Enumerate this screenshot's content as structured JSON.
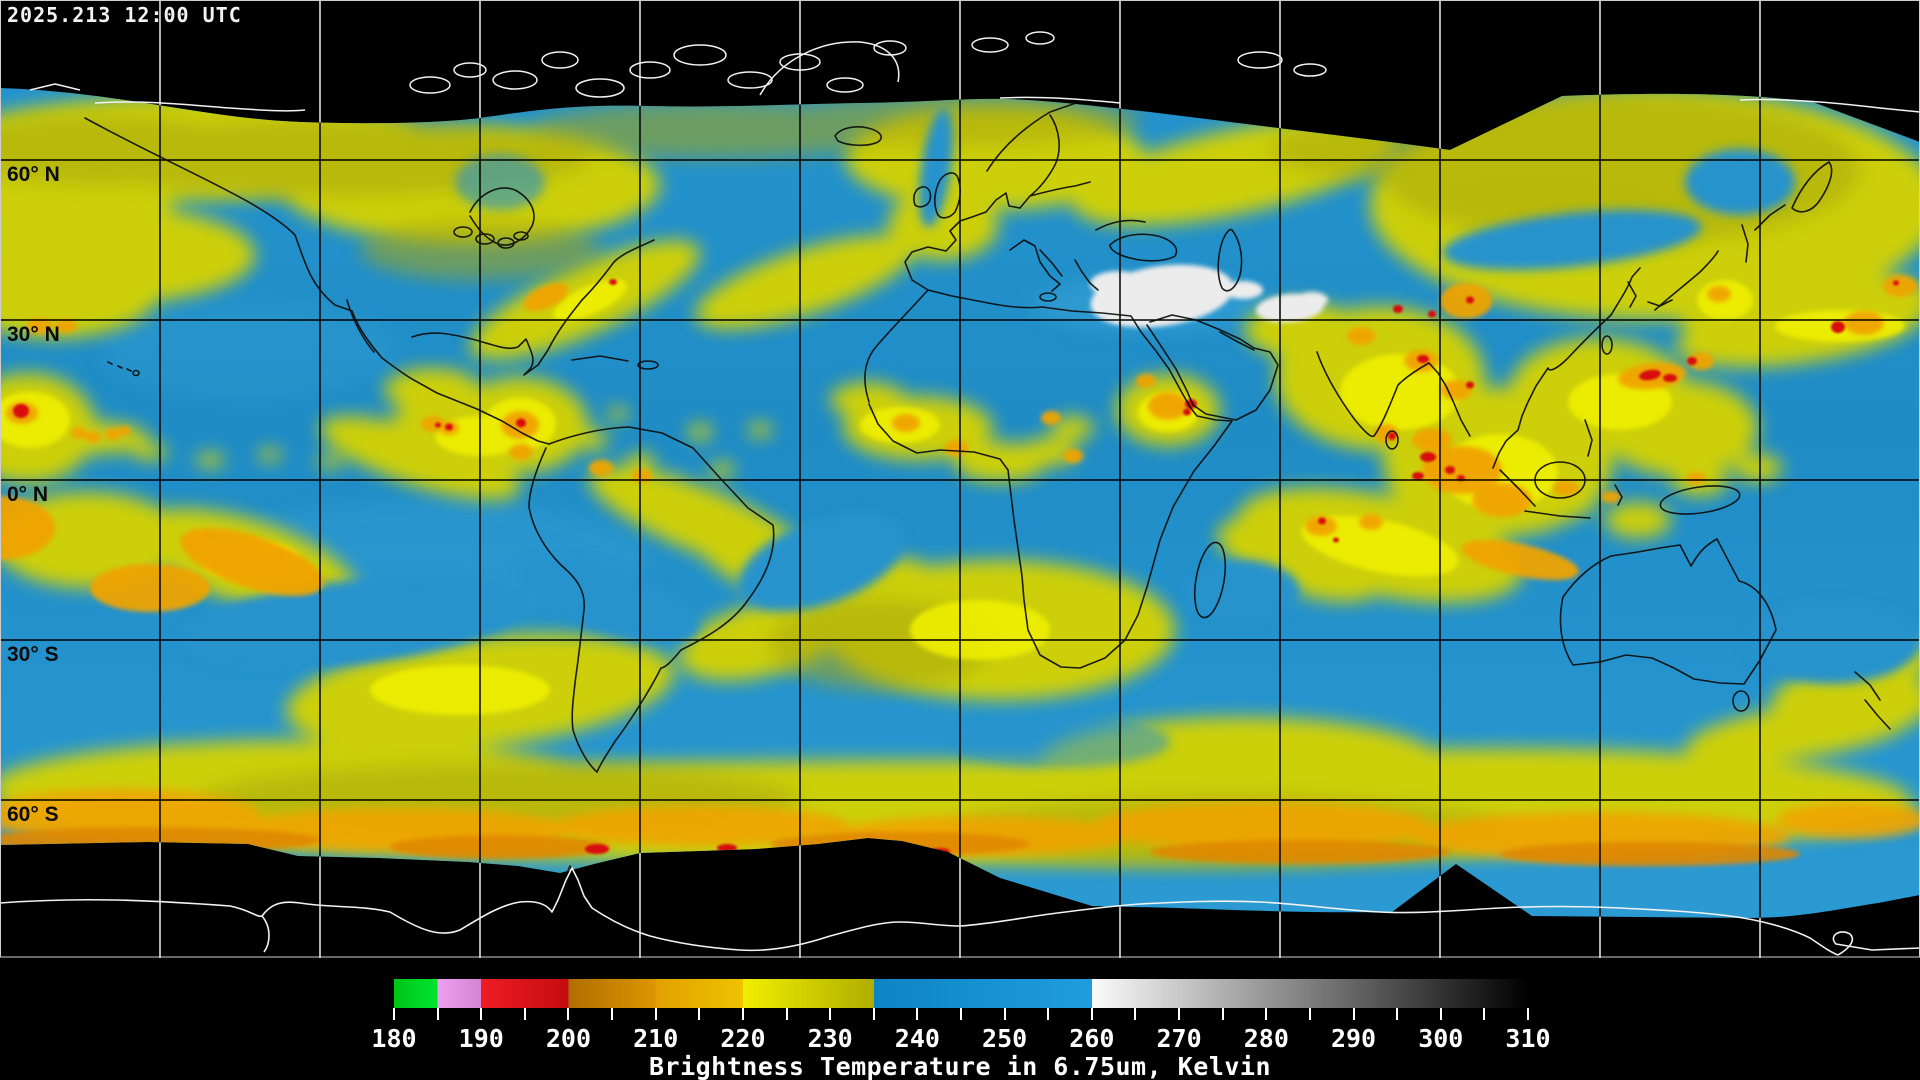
{
  "header": {
    "timestamp": "2025.213 12:00 UTC"
  },
  "map": {
    "projection": "equirectangular-global",
    "latitude_labels": [
      "60° N",
      "30° N",
      "0° N",
      "30° S",
      "60° S"
    ],
    "grid_interval_deg": 30,
    "colors": {
      "background": "#000000",
      "clear_sky_blue": "#2191cb",
      "cloud_yellow": "#d5d300",
      "cloud_olive": "#a9a70a",
      "cloud_orange": "#f0a402",
      "cloud_deep_orange": "#e08800",
      "cold_cloud_red": "#d80e0e",
      "warm_dry_white": "#ececec",
      "coastline_on_data": "#0d0d0d",
      "coastline_on_void": "#f2f2f2",
      "gridline_on_data": "#000000",
      "gridline_on_void": "#ffffff"
    }
  },
  "colorbar": {
    "caption": "Brightness Temperature in 6.75um, Kelvin",
    "unit": "Kelvin",
    "min": 180,
    "max": 310,
    "minor_tick_step": 5,
    "label_step": 10,
    "tick_labels": [
      "180",
      "190",
      "200",
      "210",
      "220",
      "230",
      "240",
      "250",
      "260",
      "270",
      "280",
      "290",
      "300",
      "310"
    ],
    "segments": [
      {
        "from": 180,
        "to": 185,
        "start": "#00c316",
        "end": "#00e52e"
      },
      {
        "from": 185,
        "to": 190,
        "start": "#efa0ef",
        "end": "#d583d5"
      },
      {
        "from": 190,
        "to": 200,
        "start": "#ee1c24",
        "end": "#c30d10"
      },
      {
        "from": 200,
        "to": 210,
        "start": "#b06e00",
        "end": "#dd9500"
      },
      {
        "from": 210,
        "to": 220,
        "start": "#e2a000",
        "end": "#eec200"
      },
      {
        "from": 220,
        "to": 235,
        "start": "#f0ee00",
        "end": "#b0ae00"
      },
      {
        "from": 235,
        "to": 260,
        "start": "#0e84c4",
        "end": "#1f9ddd"
      },
      {
        "from": 260,
        "to": 310,
        "start": "#fbfbfb",
        "end": "#000000"
      }
    ]
  }
}
